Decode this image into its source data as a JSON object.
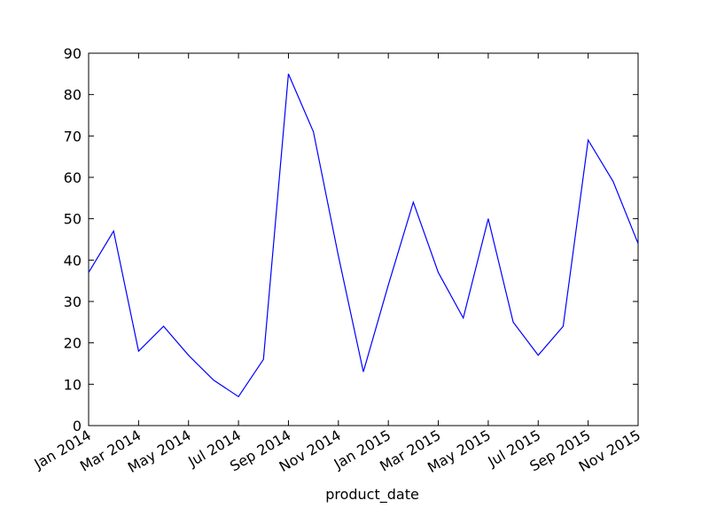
{
  "chart_data": {
    "type": "line",
    "title": "",
    "xlabel": "product_date",
    "ylabel": "",
    "x": [
      "2014-01",
      "2014-02",
      "2014-03",
      "2014-04",
      "2014-05",
      "2014-06",
      "2014-07",
      "2014-08",
      "2014-09",
      "2014-10",
      "2014-11",
      "2014-12",
      "2015-01",
      "2015-02",
      "2015-03",
      "2015-04",
      "2015-05",
      "2015-06",
      "2015-07",
      "2015-08",
      "2015-09",
      "2015-10",
      "2015-11"
    ],
    "series": [
      {
        "values": [
          37,
          47,
          18,
          24,
          17,
          11,
          7,
          16,
          85,
          71,
          41,
          13,
          34,
          54,
          37,
          26,
          50,
          25,
          17,
          24,
          69,
          59,
          44
        ],
        "color": "#0000ff"
      }
    ],
    "xlim": [
      "2014-01",
      "2015-11"
    ],
    "ylim": [
      0,
      90
    ],
    "yticks": [
      0,
      10,
      20,
      30,
      40,
      50,
      60,
      70,
      80,
      90
    ],
    "xticks": [
      {
        "x": "2014-01",
        "label": "Jan 2014"
      },
      {
        "x": "2014-03",
        "label": "Mar 2014"
      },
      {
        "x": "2014-05",
        "label": "May 2014"
      },
      {
        "x": "2014-07",
        "label": "Jul 2014"
      },
      {
        "x": "2014-09",
        "label": "Sep 2014"
      },
      {
        "x": "2014-11",
        "label": "Nov 2014"
      },
      {
        "x": "2015-01",
        "label": "Jan 2015"
      },
      {
        "x": "2015-03",
        "label": "Mar 2015"
      },
      {
        "x": "2015-05",
        "label": "May 2015"
      },
      {
        "x": "2015-07",
        "label": "Jul 2015"
      },
      {
        "x": "2015-09",
        "label": "Sep 2015"
      },
      {
        "x": "2015-11",
        "label": "Nov 2015"
      }
    ],
    "grid": false,
    "legend": false
  }
}
